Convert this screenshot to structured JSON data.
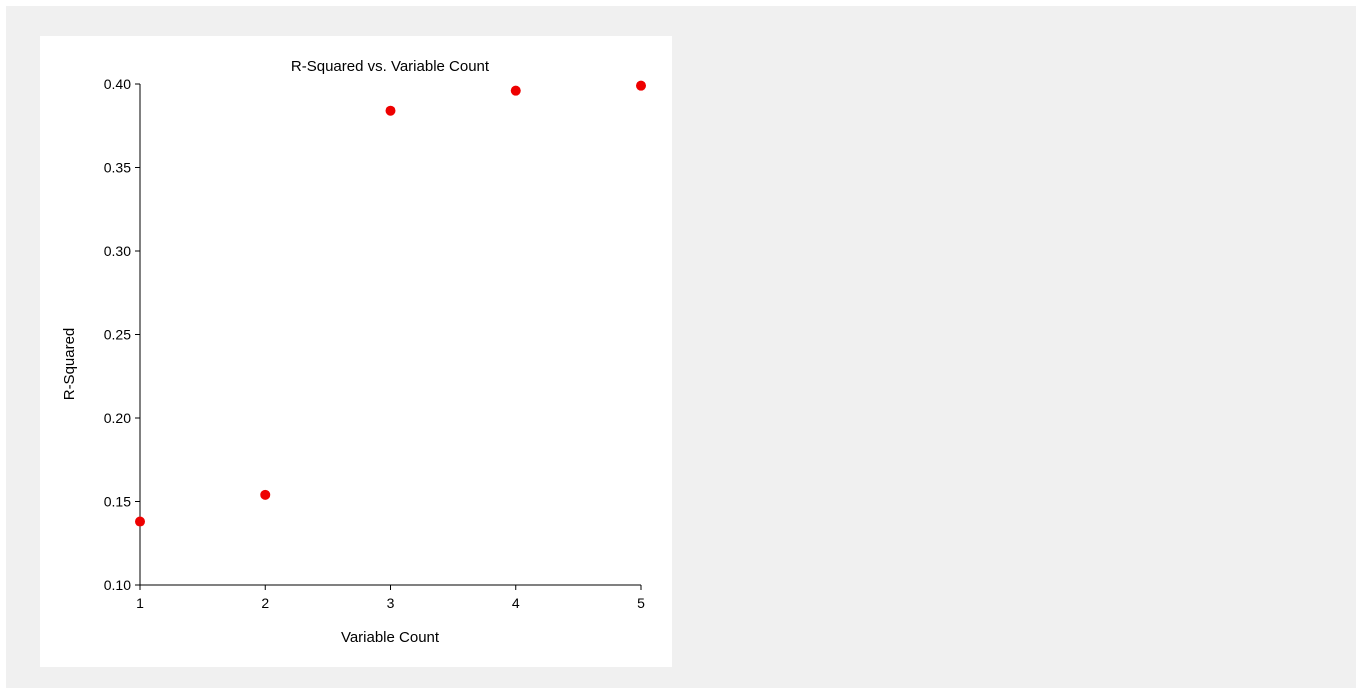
{
  "chart_data": {
    "type": "scatter",
    "title": "R-Squared vs. Variable Count",
    "xlabel": "Variable Count",
    "ylabel": "R-Squared",
    "xlim": [
      1,
      5
    ],
    "ylim": [
      0.1,
      0.4
    ],
    "xticks": [
      "1",
      "2",
      "3",
      "4",
      "5"
    ],
    "yticks": [
      "0.10",
      "0.15",
      "0.20",
      "0.25",
      "0.30",
      "0.35",
      "0.40"
    ],
    "grid": false,
    "legend": "none",
    "marker_color": "#ee0000",
    "points": [
      {
        "x": 1,
        "y": 0.138
      },
      {
        "x": 2,
        "y": 0.154
      },
      {
        "x": 3,
        "y": 0.384
      },
      {
        "x": 4,
        "y": 0.396
      },
      {
        "x": 5,
        "y": 0.399
      }
    ]
  }
}
